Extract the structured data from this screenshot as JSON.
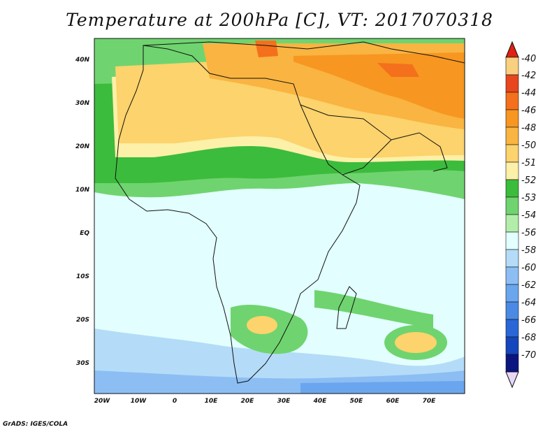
{
  "title": "Temperature at 200hPa [C], VT: 2017070318",
  "credit": "GrADS: IGES/COLA",
  "map": {
    "region": "Africa",
    "lon_range": [
      -22,
      80
    ],
    "lat_range": [
      -36,
      45
    ],
    "lon_ticks": [
      "20W",
      "10W",
      "0",
      "10E",
      "20E",
      "30E",
      "40E",
      "50E",
      "60E",
      "70E"
    ],
    "lat_ticks": [
      "40N",
      "30N",
      "20N",
      "10N",
      "EQ",
      "10S",
      "20S",
      "30S"
    ]
  },
  "colorbar": {
    "labels": [
      "-40",
      "-42",
      "-44",
      "-46",
      "-48",
      "-50",
      "-51",
      "-52",
      "-53",
      "-54",
      "-56",
      "-58",
      "-60",
      "-62",
      "-64",
      "-66",
      "-68",
      "-70"
    ],
    "colors": [
      "#f8d080",
      "#e8461e",
      "#f4701c",
      "#f79620",
      "#f9b441",
      "#fcd36c",
      "#fdf0a8",
      "#3cbc3c",
      "#6fd46f",
      "#b2eeaa",
      "#e2fefe",
      "#b4dcf8",
      "#8cbef4",
      "#6aa6ee",
      "#4a8ae4",
      "#2a66d6",
      "#1446bc",
      "#0c1480"
    ],
    "top_arrow_color": "#e02010",
    "bottom_arrow_color": "#e8d8f8"
  }
}
